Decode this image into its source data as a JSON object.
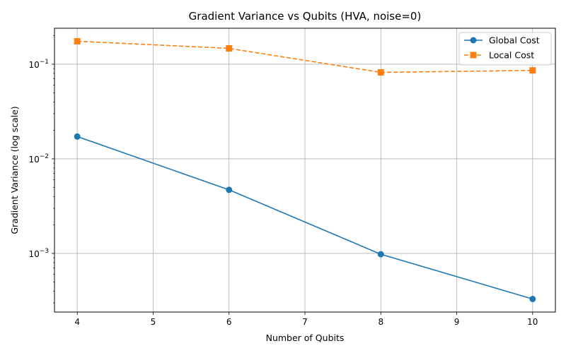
{
  "chart_data": {
    "type": "line",
    "title": "Gradient Variance vs Qubits (HVA, noise=0)",
    "xlabel": "Number of Qubits",
    "ylabel": "Gradient Variance (log scale)",
    "x": [
      4,
      6,
      8,
      10
    ],
    "xlim": [
      3.7,
      10.3
    ],
    "xticks": [
      4,
      5,
      6,
      7,
      8,
      9,
      10
    ],
    "yscale": "log",
    "ylim": [
      0.00024,
      0.24
    ],
    "yticks": [
      {
        "value": 0.001,
        "mantissa": "10",
        "exp": "−3"
      },
      {
        "value": 0.01,
        "mantissa": "10",
        "exp": "−2"
      },
      {
        "value": 0.1,
        "mantissa": "10",
        "exp": "−1"
      }
    ],
    "grid": true,
    "legend_position": "top-right",
    "series": [
      {
        "name": "Global Cost",
        "values": [
          0.0172,
          0.0047,
          0.00098,
          0.00033
        ],
        "color": "#1f77b4",
        "marker": "circle",
        "linestyle": "solid"
      },
      {
        "name": "Local Cost",
        "values": [
          0.175,
          0.147,
          0.082,
          0.086
        ],
        "color": "#ff7f0e",
        "marker": "square",
        "linestyle": "dashed"
      }
    ]
  }
}
